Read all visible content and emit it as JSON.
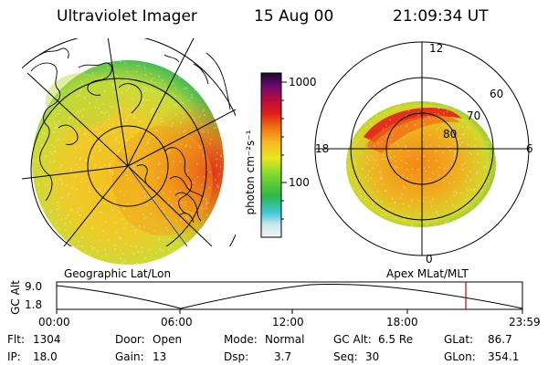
{
  "header": {
    "instrument": "Ultraviolet Imager",
    "date": "15 Aug 00",
    "time": "21:09:34 UT"
  },
  "left_panel": {
    "label": "Geographic Lat/Lon"
  },
  "right_panel": {
    "label": "Apex MLat/MLT",
    "mlt_labels": {
      "top": "12",
      "left": "18",
      "right": "6",
      "bottom": "0"
    },
    "lat_labels": [
      "60",
      "70",
      "80"
    ]
  },
  "colorbar": {
    "unit_label": "photon cm⁻²s⁻¹",
    "ticks": [
      "1000",
      "100"
    ]
  },
  "orbit_plot": {
    "ylabel": "GC Alt",
    "y_ticks": [
      "9.0",
      "1.8"
    ],
    "x_ticks": [
      "00:00",
      "06:00",
      "12:00",
      "18:00",
      "23:59"
    ],
    "current_marker_color": "#c00000"
  },
  "status": {
    "flt_label": "Flt:",
    "flt_value": "1304",
    "ip_label": "IP:",
    "ip_value": "18.0",
    "door_label": "Door:",
    "door_value": "Open",
    "gain_label": "Gain:",
    "gain_value": "13",
    "mode_label": "Mode:",
    "mode_value": "Normal",
    "dsp_label": "Dsp:",
    "dsp_value": "3.7",
    "gcalt_label": "GC Alt:",
    "gcalt_value": "6.5 Re",
    "seq_label": "Seq:",
    "seq_value": "30",
    "glat_label": "GLat:",
    "glat_value": "86.7",
    "glon_label": "GLon:",
    "glon_value": "354.1"
  },
  "colors": {
    "low": "#2aa84a",
    "mid": "#e8e020",
    "high": "#f07a10",
    "peak": "#e0201a"
  }
}
